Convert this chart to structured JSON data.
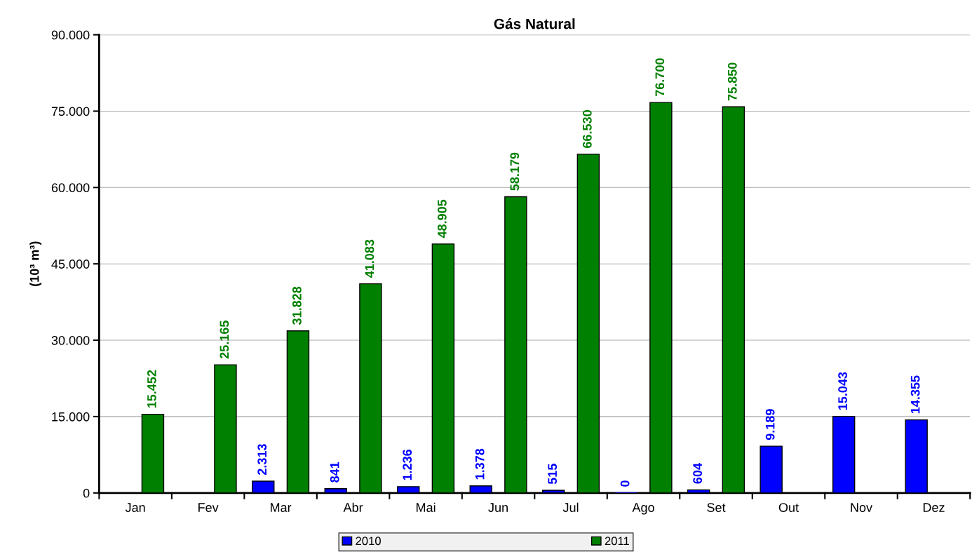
{
  "chart_data": {
    "type": "bar",
    "title": "Gás Natural",
    "ylabel": "(10³ m³)",
    "categories": [
      "Jan",
      "Fev",
      "Mar",
      "Abr",
      "Mai",
      "Jun",
      "Jul",
      "Ago",
      "Set",
      "Out",
      "Nov",
      "Dez"
    ],
    "series": [
      {
        "name": "2010",
        "color": "#0000ff",
        "values": [
          null,
          null,
          2313,
          841,
          1236,
          1378,
          515,
          0,
          604,
          9189,
          15043,
          14355
        ],
        "value_labels": [
          null,
          null,
          "2.313",
          "841",
          "1.236",
          "1.378",
          "515",
          "0",
          "604",
          "9.189",
          "15.043",
          "14.355"
        ]
      },
      {
        "name": "2011",
        "color": "#008000",
        "values": [
          15452,
          25165,
          31828,
          41083,
          48905,
          58179,
          66530,
          76700,
          75850,
          null,
          null,
          null
        ],
        "value_labels": [
          "15.452",
          "25.165",
          "31.828",
          "41.083",
          "48.905",
          "58.179",
          "66.530",
          "76.700",
          "75.850",
          null,
          null,
          null
        ]
      }
    ],
    "ylim": [
      0,
      90000
    ],
    "yticks": [
      {
        "value": 0,
        "label": "0"
      },
      {
        "value": 15000,
        "label": "15.000"
      },
      {
        "value": 30000,
        "label": "30.000"
      },
      {
        "value": 45000,
        "label": "45.000"
      },
      {
        "value": 60000,
        "label": "60.000"
      },
      {
        "value": 75000,
        "label": "75.000"
      },
      {
        "value": 90000,
        "label": "90.000"
      }
    ],
    "grid": "y",
    "legend": "bottom"
  }
}
